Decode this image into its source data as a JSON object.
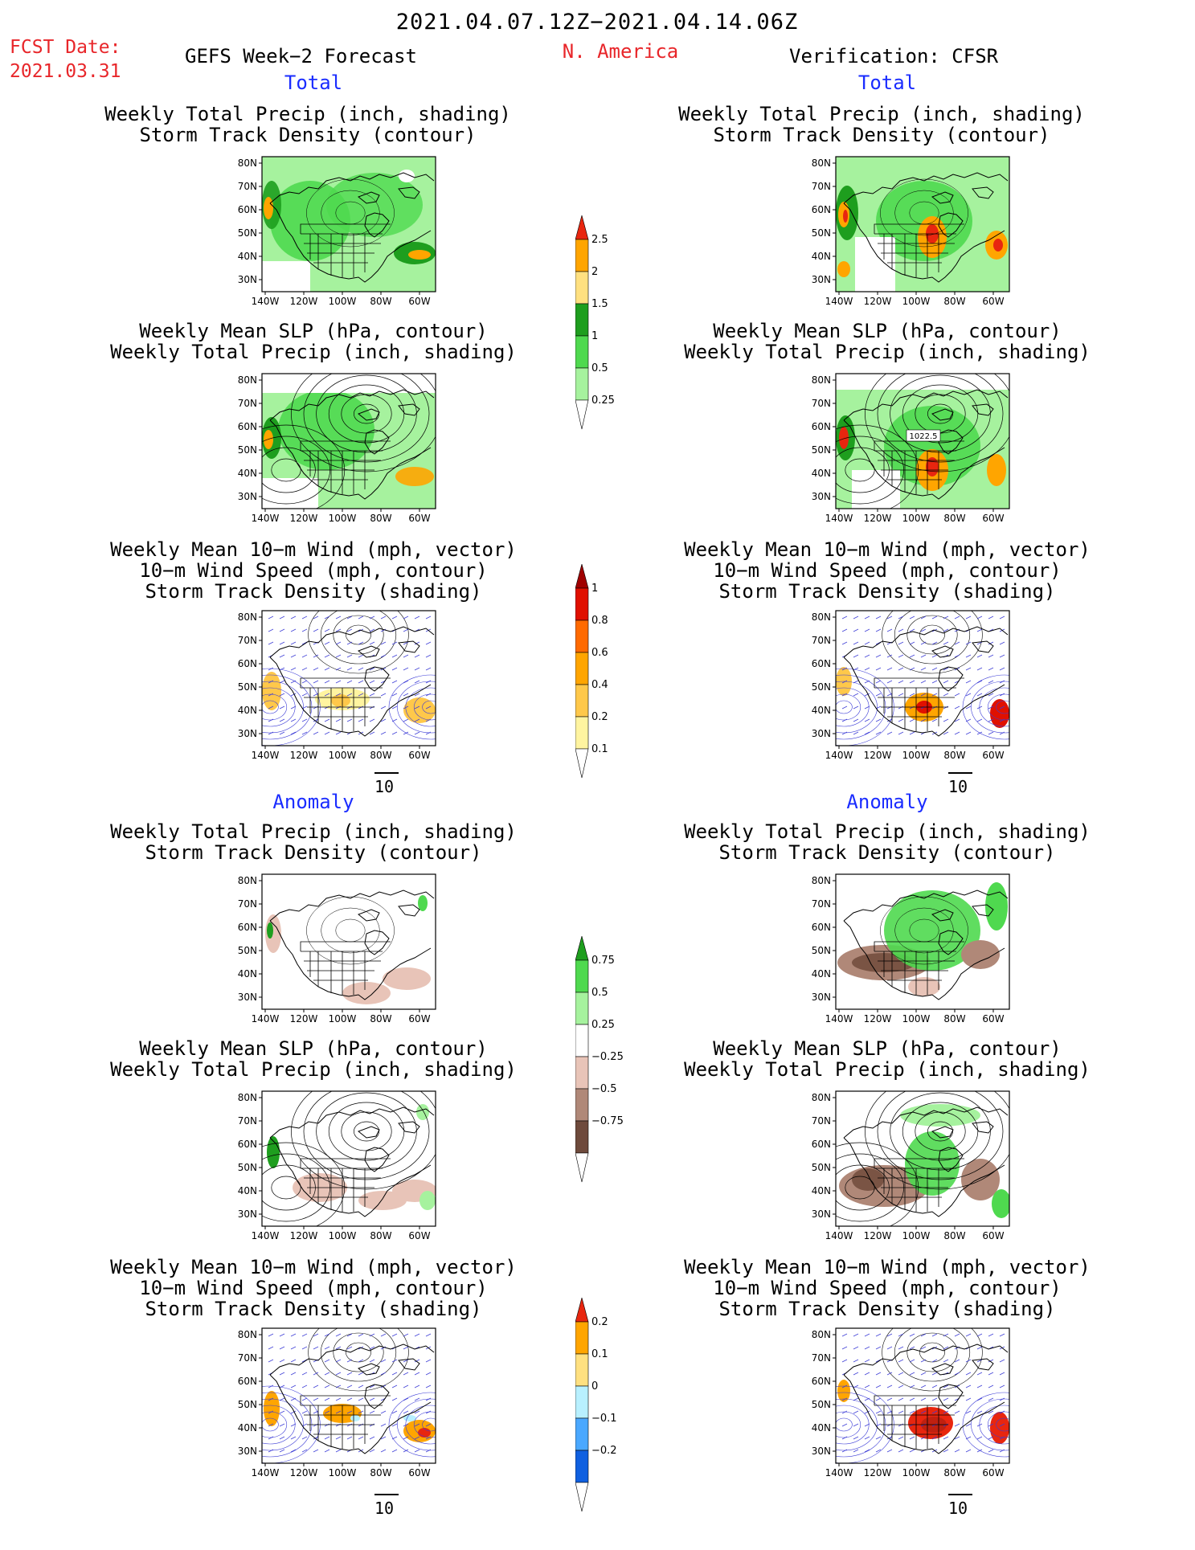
{
  "header": {
    "title": "2021.04.07.12Z−2021.04.14.06Z",
    "fcst_label": "FCST Date:",
    "fcst_date": "2021.03.31",
    "left_heading": "GEFS Week−2 Forecast",
    "region": "N. America",
    "right_heading": "Verification: CFSR"
  },
  "sections": {
    "total": "Total",
    "anomaly": "Anomaly"
  },
  "panel_titles": {
    "precip_storm": [
      "Weekly Total Precip (inch, shading)",
      "Storm Track Density (contour)"
    ],
    "slp_precip": [
      "Weekly Mean SLP (hPa, contour)",
      "Weekly Total Precip (inch, shading)"
    ],
    "wind_storm": [
      "Weekly Mean 10−m Wind (mph, vector)",
      "10−m Wind Speed (mph, contour)",
      "Storm Track Density (shading)"
    ]
  },
  "map_axes": {
    "lat_labels": [
      "80N",
      "70N",
      "60N",
      "50N",
      "40N",
      "30N"
    ],
    "lon_labels": [
      "140W",
      "120W",
      "100W",
      "80W",
      "60W"
    ]
  },
  "slp_label": "1022.5",
  "vector_ref": "10",
  "colorbars": {
    "precip_total": {
      "levels": [
        "2.5",
        "2",
        "1.5",
        "1",
        "0.5",
        "0.25"
      ],
      "colors": [
        "#e8260f",
        "#ffa500",
        "#ffe080",
        "#1e9e1e",
        "#4fd94f",
        "#a6f29e"
      ]
    },
    "storm_total": {
      "levels": [
        "1",
        "0.8",
        "0.6",
        "0.4",
        "0.2",
        "0.1"
      ],
      "colors": [
        "#a00000",
        "#e01000",
        "#ff6a00",
        "#ffa500",
        "#ffc84a",
        "#fff4a0"
      ]
    },
    "precip_anom": {
      "levels": [
        "0.75",
        "0.5",
        "0.25",
        "−0.25",
        "−0.5",
        "−0.75"
      ],
      "colors": [
        "#1e9e1e",
        "#4fd94f",
        "#a6f29e",
        "#ffffff",
        "#e8c4b8",
        "#b08878",
        "#6e4a3c"
      ]
    },
    "storm_anom": {
      "levels": [
        "0.2",
        "0.1",
        "0",
        "−0.1",
        "−0.2"
      ],
      "colors": [
        "#e8260f",
        "#ffa500",
        "#ffe080",
        "#b8f0ff",
        "#4aa8ff",
        "#1060e0"
      ]
    }
  },
  "colors": {
    "land_green": "#4fd94f",
    "light_green": "#a6f29e",
    "dark_green": "#1e9e1e",
    "orange": "#ffa500",
    "red": "#e8260f",
    "brown_light": "#e8c4b8",
    "brown_mid": "#b08878",
    "wind_blue": "#3b3bd6"
  }
}
